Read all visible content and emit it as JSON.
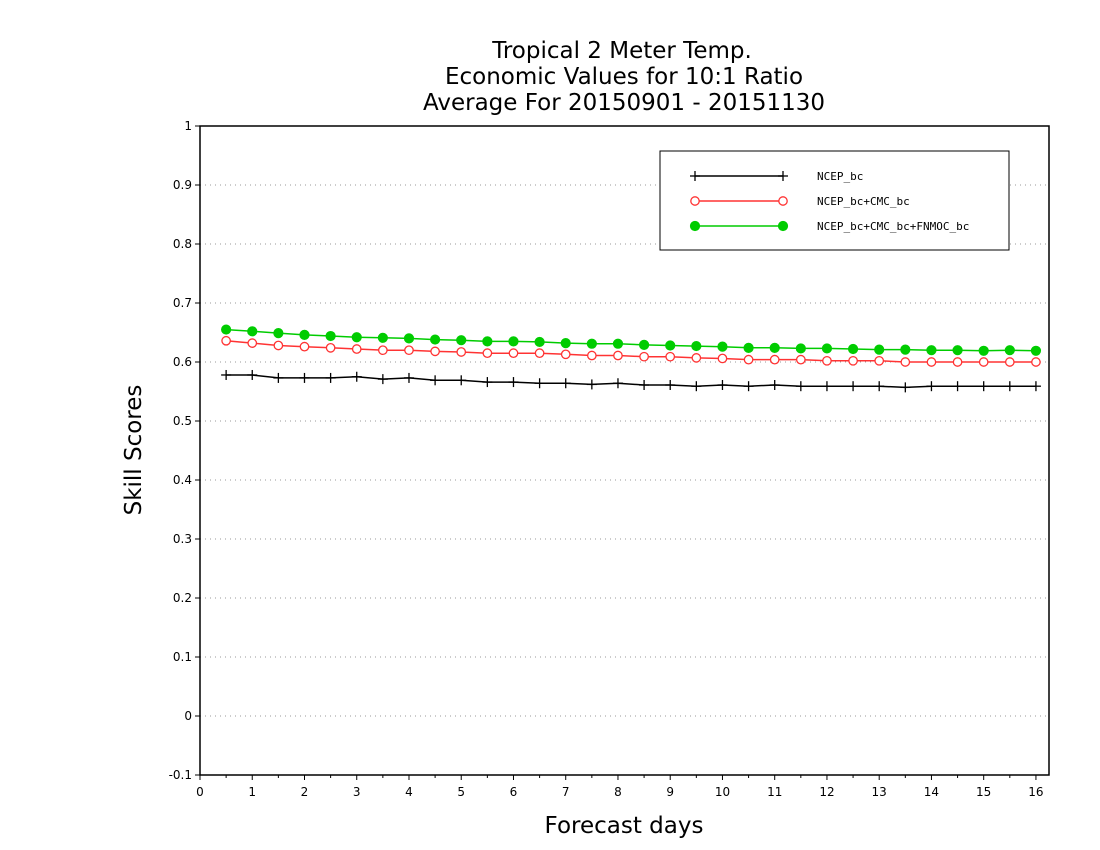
{
  "chart_data": {
    "type": "line",
    "title_lines": [
      "Tropical 2 Meter Temp.",
      "Economic Values for 10:1 Ratio",
      "Average For 20150901 - 20151130"
    ],
    "xlabel": "Forecast days",
    "ylabel": "Skill Scores",
    "xlim": [
      0,
      16.25
    ],
    "ylim": [
      -0.1,
      1
    ],
    "x_ticks": [
      0,
      1,
      2,
      3,
      4,
      5,
      6,
      7,
      8,
      9,
      10,
      11,
      12,
      13,
      14,
      15,
      16
    ],
    "y_ticks": [
      -0.1,
      0,
      0.1,
      0.2,
      0.3,
      0.4,
      0.5,
      0.6,
      0.7,
      0.8,
      0.9,
      1
    ],
    "y_tick_labels": [
      "-0.1",
      "0",
      "0.1",
      "0.2",
      "0.3",
      "0.4",
      "0.5",
      "0.6",
      "0.7",
      "0.8",
      "0.9",
      "1"
    ],
    "grid": "horizontal-dotted",
    "legend_position": "top-right",
    "x": [
      0.5,
      1,
      1.5,
      2,
      2.5,
      3,
      3.5,
      4,
      4.5,
      5,
      5.5,
      6,
      6.5,
      7,
      7.5,
      8,
      8.5,
      9,
      9.5,
      10,
      10.5,
      11,
      11.5,
      12,
      12.5,
      13,
      13.5,
      14,
      14.5,
      15,
      15.5,
      16
    ],
    "series": [
      {
        "name": "NCEP_bc",
        "color": "#000000",
        "marker": "plus",
        "values": [
          0.578,
          0.578,
          0.573,
          0.573,
          0.573,
          0.575,
          0.571,
          0.573,
          0.569,
          0.569,
          0.566,
          0.566,
          0.564,
          0.564,
          0.562,
          0.564,
          0.561,
          0.561,
          0.559,
          0.561,
          0.559,
          0.561,
          0.559,
          0.559,
          0.559,
          0.559,
          0.557,
          0.559,
          0.559,
          0.559,
          0.559,
          0.559
        ]
      },
      {
        "name": "NCEP_bc+CMC_bc",
        "color": "#ff3333",
        "marker": "open-circle",
        "values": [
          0.636,
          0.632,
          0.628,
          0.626,
          0.624,
          0.622,
          0.62,
          0.62,
          0.618,
          0.617,
          0.615,
          0.615,
          0.615,
          0.613,
          0.611,
          0.611,
          0.609,
          0.609,
          0.607,
          0.606,
          0.604,
          0.604,
          0.604,
          0.602,
          0.602,
          0.602,
          0.6,
          0.6,
          0.6,
          0.6,
          0.6,
          0.6
        ]
      },
      {
        "name": "NCEP_bc+CMC_bc+FNMOC_bc",
        "color": "#00cc00",
        "marker": "filled-circle",
        "values": [
          0.655,
          0.652,
          0.649,
          0.646,
          0.644,
          0.642,
          0.641,
          0.64,
          0.638,
          0.637,
          0.635,
          0.635,
          0.634,
          0.632,
          0.631,
          0.631,
          0.629,
          0.628,
          0.627,
          0.626,
          0.624,
          0.624,
          0.623,
          0.623,
          0.622,
          0.621,
          0.621,
          0.62,
          0.62,
          0.619,
          0.62,
          0.619
        ]
      }
    ]
  }
}
